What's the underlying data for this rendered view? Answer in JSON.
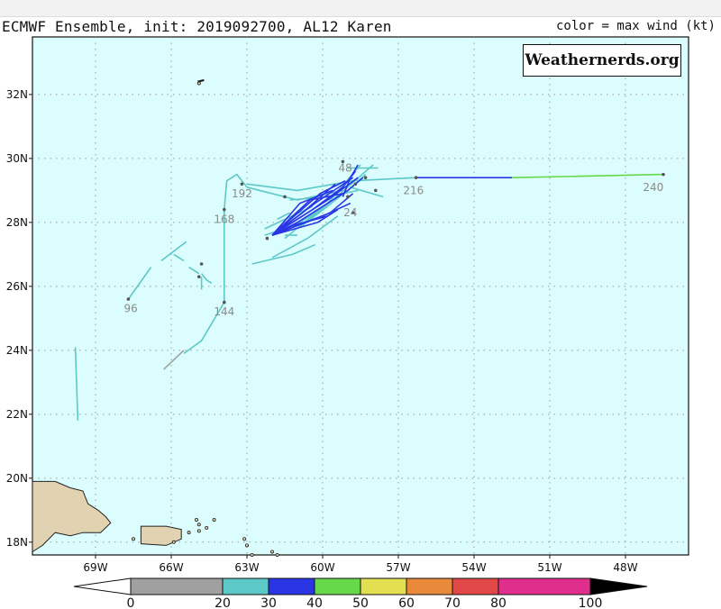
{
  "title": "ECMWF Ensemble, init: 2019092700, AL12 Karen",
  "legend_note": "color = max wind (kt)",
  "credit": "Weathernerds.org",
  "chart_data": {
    "type": "line",
    "title": "ECMWF Ensemble, init: 2019092700, AL12 Karen",
    "color_scale_label": "color = max wind (kt)",
    "xlim": [
      -71.5,
      -45.5
    ],
    "ylim": [
      17.6,
      33.8
    ],
    "x_ticks": [
      {
        "value": -69,
        "label": "69W"
      },
      {
        "value": -66,
        "label": "66W"
      },
      {
        "value": -63,
        "label": "63W"
      },
      {
        "value": -60,
        "label": "60W"
      },
      {
        "value": -57,
        "label": "57W"
      },
      {
        "value": -54,
        "label": "54W"
      },
      {
        "value": -51,
        "label": "51W"
      },
      {
        "value": -48,
        "label": "48W"
      }
    ],
    "y_ticks": [
      {
        "value": 18,
        "label": "18N"
      },
      {
        "value": 20,
        "label": "20N"
      },
      {
        "value": 22,
        "label": "22N"
      },
      {
        "value": 24,
        "label": "24N"
      },
      {
        "value": 26,
        "label": "26N"
      },
      {
        "value": 28,
        "label": "28N"
      },
      {
        "value": 30,
        "label": "30N"
      },
      {
        "value": 32,
        "label": "32N"
      }
    ],
    "grid": true,
    "colorbar": {
      "bins": [
        {
          "from": 0,
          "to": 20,
          "color": "#a0a0a0"
        },
        {
          "from": 20,
          "to": 30,
          "color": "#5cc8c8"
        },
        {
          "from": 30,
          "to": 40,
          "color": "#2a36e6"
        },
        {
          "from": 40,
          "to": 50,
          "color": "#66d94a"
        },
        {
          "from": 50,
          "to": 60,
          "color": "#e2e050"
        },
        {
          "from": 60,
          "to": 70,
          "color": "#e98a3a"
        },
        {
          "from": 70,
          "to": 80,
          "color": "#e24848"
        },
        {
          "from": 80,
          "to": 100,
          "color": "#e02e8c"
        }
      ],
      "low_color": "#ffffff",
      "high_color": "#000000",
      "labels": [
        "0",
        "20",
        "30",
        "40",
        "50",
        "60",
        "70",
        "80",
        "100"
      ]
    },
    "hour_labels": [
      {
        "text": "24",
        "lon": -58.9,
        "lat": 28.3
      },
      {
        "text": "48",
        "lon": -59.1,
        "lat": 29.7
      },
      {
        "text": "96",
        "lon": -67.6,
        "lat": 25.3
      },
      {
        "text": "144",
        "lon": -63.9,
        "lat": 25.2
      },
      {
        "text": "168",
        "lon": -63.9,
        "lat": 28.1
      },
      {
        "text": "192",
        "lon": -63.2,
        "lat": 28.9
      },
      {
        "text": "216",
        "lon": -56.4,
        "lat": 29.0
      },
      {
        "text": "240",
        "lon": -46.9,
        "lat": 29.1
      }
    ],
    "series": [
      {
        "wind_color": "#5cc8c8",
        "points": [
          [
            -59.2,
            29.0
          ],
          [
            -61.0,
            28.7
          ],
          [
            -63.0,
            29.1
          ],
          [
            -63.4,
            29.5
          ],
          [
            -63.8,
            29.3
          ],
          [
            -63.9,
            28.4
          ],
          [
            -63.9,
            25.5
          ],
          [
            -64.8,
            24.3
          ],
          [
            -65.5,
            23.9
          ]
        ]
      },
      {
        "wind_color": "#a0a0a0",
        "points": [
          [
            -65.5,
            24.0
          ],
          [
            -66.3,
            23.4
          ]
        ]
      },
      {
        "wind_color": "#5cc8c8",
        "points": [
          [
            -67.7,
            25.6
          ],
          [
            -66.8,
            26.6
          ]
        ]
      },
      {
        "wind_color": "#5cc8c8",
        "points": [
          [
            -66.4,
            26.8
          ],
          [
            -65.4,
            27.4
          ]
        ]
      },
      {
        "wind_color": "#5cc8c8",
        "points": [
          [
            -65.9,
            27.0
          ],
          [
            -65.5,
            26.8
          ]
        ]
      },
      {
        "wind_color": "#5cc8c8",
        "points": [
          [
            -65.3,
            26.6
          ],
          [
            -64.9,
            26.4
          ]
        ]
      },
      {
        "wind_color": "#5cc8c8",
        "points": [
          [
            -64.8,
            26.4
          ],
          [
            -64.6,
            26.2
          ],
          [
            -64.4,
            26.1
          ]
        ]
      },
      {
        "wind_color": "#5cc8c8",
        "points": [
          [
            -64.8,
            26.3
          ],
          [
            -64.8,
            25.9
          ]
        ]
      },
      {
        "wind_color": "#5cc8c8",
        "points": [
          [
            -69.8,
            24.1
          ],
          [
            -69.7,
            21.8
          ]
        ]
      },
      {
        "wind_color": "#5cc8c8",
        "points": [
          [
            -62.8,
            26.7
          ],
          [
            -61.2,
            27.0
          ],
          [
            -60.3,
            27.3
          ]
        ]
      },
      {
        "wind_color": "#5cc8c8",
        "points": [
          [
            -62.0,
            26.9
          ],
          [
            -60.6,
            27.5
          ],
          [
            -59.4,
            28.2
          ]
        ]
      },
      {
        "wind_color": "#5cc8c8",
        "points": [
          [
            -63.0,
            29.2
          ],
          [
            -61.0,
            29.0
          ],
          [
            -58.8,
            29.3
          ],
          [
            -56.3,
            29.4
          ]
        ]
      },
      {
        "wind_color": "#2a36e6",
        "points": [
          [
            -56.3,
            29.4
          ],
          [
            -52.5,
            29.4
          ]
        ]
      },
      {
        "wind_color": "#66d94a",
        "points": [
          [
            -52.5,
            29.4
          ],
          [
            -46.5,
            29.5
          ]
        ]
      },
      {
        "wind_color": "#5cc8c8",
        "points": [
          [
            -61.5,
            27.5
          ],
          [
            -59.8,
            28.6
          ],
          [
            -58.5,
            29.8
          ]
        ]
      },
      {
        "wind_color": "#5cc8c8",
        "points": [
          [
            -61.0,
            27.8
          ],
          [
            -59.3,
            28.9
          ],
          [
            -58.0,
            29.8
          ]
        ]
      },
      {
        "wind_color": "#5cc8c8",
        "points": [
          [
            -60.8,
            27.9
          ],
          [
            -59.0,
            29.0
          ],
          [
            -58.3,
            29.5
          ]
        ]
      },
      {
        "wind_color": "#5cc8c8",
        "points": [
          [
            -59.0,
            29.7
          ],
          [
            -57.8,
            29.7
          ]
        ]
      },
      {
        "wind_color": "#5cc8c8",
        "points": [
          [
            -58.9,
            29.1
          ],
          [
            -57.6,
            28.8
          ]
        ]
      },
      {
        "wind_color": "#5cc8c8",
        "points": [
          [
            -61.5,
            27.6
          ],
          [
            -61.0,
            27.6
          ]
        ]
      },
      {
        "wind_color": "#5cc8c8",
        "points": [
          [
            -61.8,
            28.1
          ],
          [
            -61.3,
            28.3
          ]
        ]
      },
      {
        "wind_color": "#5cc8c8",
        "points": [
          [
            -62.3,
            27.6
          ],
          [
            -61.1,
            27.9
          ],
          [
            -60.1,
            28.4
          ]
        ]
      },
      {
        "wind_color": "#5cc8c8",
        "points": [
          [
            -61.3,
            28.7
          ],
          [
            -59.8,
            28.8
          ],
          [
            -58.6,
            29.0
          ]
        ]
      },
      {
        "wind_color": "#5cc8c8",
        "points": [
          [
            -62.3,
            27.8
          ],
          [
            -60.4,
            28.5
          ]
        ]
      },
      {
        "wind_color": "#2a36e6",
        "points": [
          [
            -62.0,
            27.6
          ],
          [
            -60.3,
            28.6
          ],
          [
            -58.8,
            29.4
          ]
        ]
      },
      {
        "wind_color": "#2a36e6",
        "points": [
          [
            -62.0,
            27.6
          ],
          [
            -60.8,
            28.3
          ],
          [
            -59.5,
            29.2
          ]
        ]
      },
      {
        "wind_color": "#2a36e6",
        "points": [
          [
            -62.0,
            27.6
          ],
          [
            -59.8,
            28.7
          ],
          [
            -58.6,
            29.4
          ]
        ]
      },
      {
        "wind_color": "#2a36e6",
        "points": [
          [
            -62.0,
            27.6
          ],
          [
            -60.1,
            28.9
          ],
          [
            -59.1,
            29.3
          ]
        ]
      },
      {
        "wind_color": "#2a36e6",
        "points": [
          [
            -62.0,
            27.6
          ],
          [
            -60.5,
            28.7
          ],
          [
            -59.2,
            28.9
          ]
        ]
      },
      {
        "wind_color": "#2a36e6",
        "points": [
          [
            -62.0,
            27.6
          ],
          [
            -59.7,
            28.3
          ],
          [
            -58.8,
            28.9
          ]
        ]
      },
      {
        "wind_color": "#2a36e6",
        "points": [
          [
            -62.0,
            27.6
          ],
          [
            -60.0,
            28.2
          ],
          [
            -58.9,
            28.6
          ]
        ]
      },
      {
        "wind_color": "#2a36e6",
        "points": [
          [
            -62.0,
            27.6
          ],
          [
            -61.0,
            28.0
          ],
          [
            -59.0,
            29.0
          ],
          [
            -58.4,
            29.4
          ]
        ]
      },
      {
        "wind_color": "#2a36e6",
        "points": [
          [
            -62.0,
            27.6
          ],
          [
            -60.9,
            28.6
          ],
          [
            -59.6,
            29.0
          ]
        ]
      },
      {
        "wind_color": "#2a36e6",
        "points": [
          [
            -62.0,
            27.6
          ],
          [
            -60.2,
            28.0
          ],
          [
            -59.4,
            28.4
          ]
        ]
      },
      {
        "wind_color": "#2a36e6",
        "points": [
          [
            -62.0,
            27.6
          ],
          [
            -61.2,
            27.9
          ],
          [
            -59.8,
            28.2
          ]
        ]
      },
      {
        "wind_color": "#2a36e6",
        "points": [
          [
            -62.0,
            27.6
          ],
          [
            -60.4,
            28.4
          ],
          [
            -59.2,
            29.1
          ],
          [
            -58.7,
            29.6
          ]
        ]
      },
      {
        "wind_color": "#2a36e6",
        "points": [
          [
            -59.2,
            28.8
          ],
          [
            -58.9,
            29.4
          ],
          [
            -58.6,
            29.8
          ]
        ]
      }
    ],
    "land": [
      "Hispaniola",
      "Puerto Rico",
      "Virgin Islands",
      "Lesser Antilles",
      "Bermuda"
    ]
  }
}
